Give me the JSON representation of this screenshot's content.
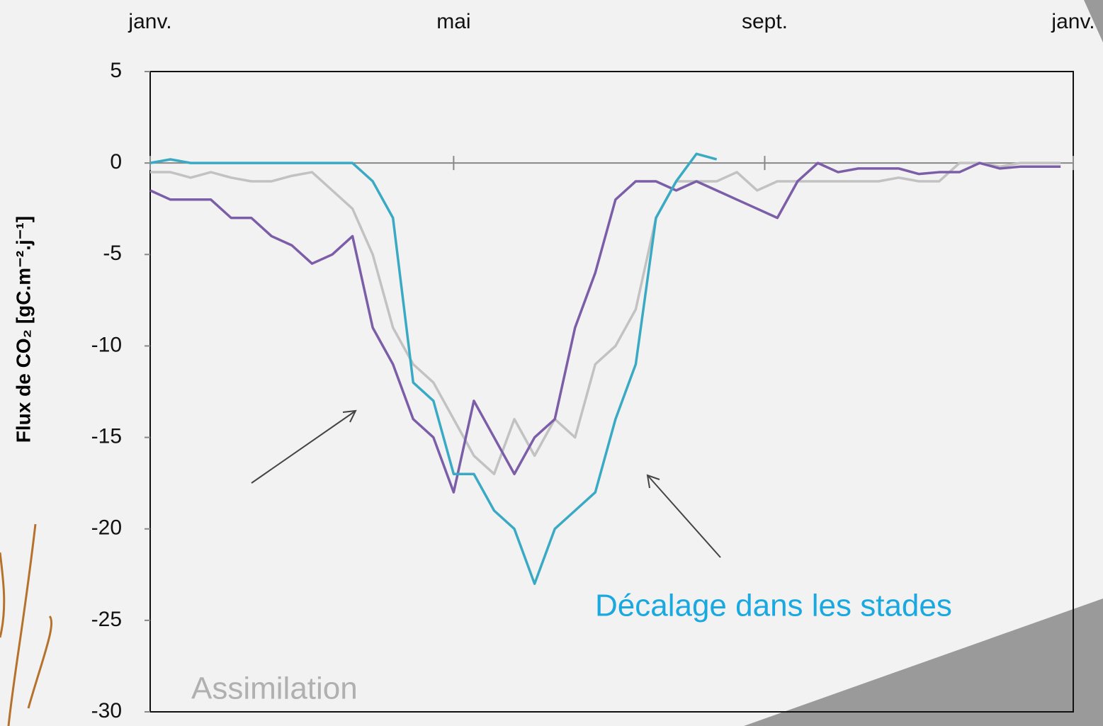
{
  "chart_data": {
    "type": "line",
    "ylabel": "Flux de CO₂ [gC.m⁻².j⁻¹]",
    "annotations": [
      "Décalage dans les stades",
      "Assimilation"
    ],
    "xlim": [
      0,
      365
    ],
    "xticks": [
      {
        "value": 0,
        "label": "janv."
      },
      {
        "value": 120,
        "label": "mai"
      },
      {
        "value": 243,
        "label": "sept."
      },
      {
        "value": 365,
        "label": "janv."
      }
    ],
    "ylim": [
      -30,
      5
    ],
    "yticks": [
      5,
      0,
      -5,
      -10,
      -15,
      -20,
      -25,
      -30
    ],
    "x": [
      0,
      8,
      16,
      24,
      32,
      40,
      48,
      56,
      64,
      72,
      80,
      88,
      96,
      104,
      112,
      120,
      128,
      136,
      144,
      152,
      160,
      168,
      176,
      184,
      192,
      200,
      208,
      216,
      224,
      232,
      240,
      248,
      256,
      264,
      272,
      280,
      288,
      296,
      304,
      312,
      320,
      328,
      336,
      344,
      352,
      360
    ],
    "series": [
      {
        "color": "#c2c2c2",
        "values": [
          -0.5,
          -0.5,
          -0.8,
          -0.5,
          -0.8,
          -1,
          -1,
          -0.7,
          -0.5,
          -1.5,
          -2.5,
          -5,
          -9,
          -11,
          -12,
          -14,
          -16,
          -17,
          -14,
          -16,
          -14,
          -15,
          -11,
          -10,
          -8,
          -3,
          -1,
          -1,
          -1,
          -0.5,
          -1.5,
          -1,
          -1,
          -1,
          -1,
          -1,
          -1,
          -0.8,
          -1,
          -1,
          0,
          0,
          -0.2,
          0,
          0,
          0
        ]
      },
      {
        "color": "#7b5ea7",
        "values": [
          -1.5,
          -2,
          -2,
          -2,
          -3,
          -3,
          -4,
          -4.5,
          -5.5,
          -5,
          -4,
          -9,
          -11,
          -14,
          -15,
          -18,
          -13,
          -15,
          -17,
          -15,
          -14,
          -9,
          -6,
          -2,
          -1,
          -1,
          -1.5,
          -1,
          -1.5,
          -2,
          -2.5,
          -3,
          -1,
          0,
          -0.5,
          -0.3,
          -0.3,
          -0.3,
          -0.6,
          -0.5,
          -0.5,
          0,
          -0.3,
          -0.2,
          -0.2,
          -0.2
        ]
      },
      {
        "color": "#3aaac4",
        "values": [
          0,
          0.2,
          0,
          0,
          0,
          0,
          0,
          0,
          0,
          0,
          0,
          -1,
          -3,
          -12,
          -13,
          -17,
          -17,
          -19,
          -20,
          -23,
          -20,
          -19,
          -18,
          -14,
          -11,
          -3,
          -1,
          0.5,
          0.2,
          null,
          null,
          null,
          null,
          null,
          null,
          null,
          null,
          null,
          null,
          null,
          null,
          null,
          null,
          null,
          null,
          null
        ]
      }
    ]
  }
}
